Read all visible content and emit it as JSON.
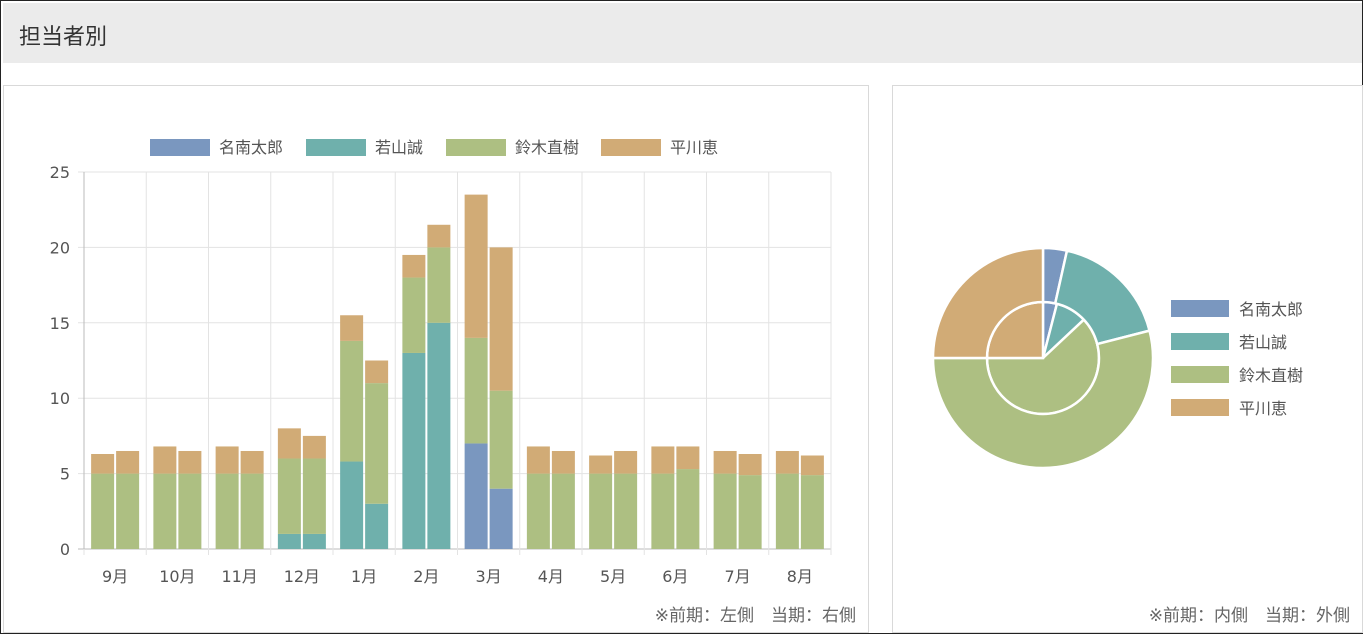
{
  "header": {
    "title": "担当者別"
  },
  "colors": {
    "名南太郎": "#7a97bf",
    "若山誠": "#6fb0ac",
    "鈴木直樹": "#adbf82",
    "平川恵": "#d1ab76"
  },
  "legend": [
    "名南太郎",
    "若山誠",
    "鈴木直樹",
    "平川恵"
  ],
  "bar_note": "※前期：左側　当期：右側",
  "pie_note": "※前期：内側　当期：外側",
  "chart_data": [
    {
      "type": "bar",
      "stacked": true,
      "categories": [
        "9月",
        "10月",
        "11月",
        "12月",
        "1月",
        "2月",
        "3月",
        "4月",
        "5月",
        "6月",
        "7月",
        "8月"
      ],
      "yticks": [
        0,
        5,
        10,
        15,
        20,
        25
      ],
      "ylim": [
        0,
        25
      ],
      "legend_position": "top",
      "series": [
        {
          "name": "名南太郎",
          "previous": [
            0,
            0,
            0,
            0,
            0,
            0,
            7,
            0,
            0,
            0,
            0,
            0
          ],
          "current": [
            0,
            0,
            0,
            0,
            0,
            0,
            4,
            0,
            0,
            0,
            0,
            0
          ]
        },
        {
          "name": "若山誠",
          "previous": [
            0,
            0,
            0,
            1,
            5.8,
            13,
            0,
            0,
            0,
            0,
            0,
            0
          ],
          "current": [
            0,
            0,
            0,
            1,
            3,
            15,
            0,
            0,
            0,
            0,
            0,
            0
          ]
        },
        {
          "name": "鈴木直樹",
          "previous": [
            5,
            5,
            5,
            5,
            8,
            5,
            7,
            5,
            5,
            5,
            5,
            5
          ],
          "current": [
            5,
            5,
            5,
            5,
            8,
            5,
            6.5,
            5,
            5,
            5.3,
            4.9,
            4.9
          ]
        },
        {
          "name": "平川恵",
          "previous": [
            1.3,
            1.8,
            1.8,
            2,
            1.7,
            1.5,
            9.5,
            1.8,
            1.2,
            1.8,
            1.5,
            1.5
          ],
          "current": [
            1.5,
            1.5,
            1.5,
            1.5,
            1.5,
            1.5,
            9.5,
            1.5,
            1.5,
            1.5,
            1.4,
            1.3
          ]
        }
      ]
    },
    {
      "type": "pie",
      "legend_position": "right",
      "rings": [
        {
          "name": "前期",
          "position": "inner",
          "values": [
            {
              "label": "名南太郎",
              "value": 4
            },
            {
              "label": "若山誠",
              "value": 9
            },
            {
              "label": "鈴木直樹",
              "value": 62
            },
            {
              "label": "平川恵",
              "value": 25
            }
          ]
        },
        {
          "name": "当期",
          "position": "outer",
          "values": [
            {
              "label": "名南太郎",
              "value": 3.5
            },
            {
              "label": "若山誠",
              "value": 17.5
            },
            {
              "label": "鈴木直樹",
              "value": 54
            },
            {
              "label": "平川恵",
              "value": 25
            }
          ]
        }
      ]
    }
  ]
}
